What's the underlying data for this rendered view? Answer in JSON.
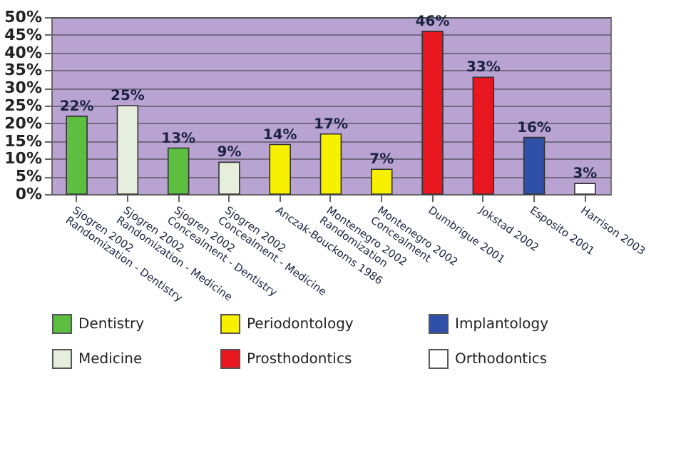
{
  "chart_data": {
    "type": "bar",
    "categories": [
      "Sjogren 2002\nRandomization - Dentistry",
      "Sjogren 2002\nRandomization - Medicine",
      "Sjogren 2002\nConcealment - Dentistry",
      "Sjogren 2002\nConcealment - Medicine",
      "Anczak-Bouckoms 1986",
      "Montenegro 2002\nRandomization",
      "Montenegro 2002\nConcealment",
      "Dumbrigue 2001",
      "Jokstad 2002",
      "Esposito 2001",
      "Harrison 2003"
    ],
    "series": [
      {
        "name": "Dentistry",
        "color": "#5cbf3f",
        "values": [
          22,
          null,
          13,
          null,
          null,
          null,
          null,
          null,
          null,
          null,
          null
        ],
        "value_labels": [
          "22%",
          null,
          "13%",
          null,
          null,
          null,
          null,
          null,
          null,
          null,
          null
        ]
      },
      {
        "name": "Periodontology",
        "color": "#f7f000",
        "values": [
          null,
          null,
          null,
          null,
          14,
          17,
          7,
          null,
          null,
          null,
          null
        ],
        "value_labels": [
          null,
          null,
          null,
          null,
          "14%",
          "17%",
          "7%",
          null,
          null,
          null,
          null
        ]
      },
      {
        "name": "Implantology",
        "color": "#2f4fa8",
        "values": [
          null,
          null,
          null,
          null,
          null,
          null,
          null,
          null,
          null,
          16,
          null
        ],
        "value_labels": [
          null,
          null,
          null,
          null,
          null,
          null,
          null,
          null,
          null,
          "16%",
          null
        ]
      },
      {
        "name": "Medicine",
        "color": "#e6eedd",
        "values": [
          null,
          25,
          null,
          9,
          null,
          null,
          null,
          null,
          null,
          null,
          null
        ],
        "value_labels": [
          null,
          "25%",
          null,
          "9%",
          null,
          null,
          null,
          null,
          null,
          null,
          null
        ]
      },
      {
        "name": "Prosthodontics",
        "color": "#e8161e",
        "values": [
          null,
          null,
          null,
          null,
          null,
          null,
          null,
          46,
          33,
          null,
          null
        ],
        "value_labels": [
          null,
          null,
          null,
          null,
          null,
          null,
          null,
          "46%",
          "33%",
          null,
          null
        ]
      },
      {
        "name": "Orthodontics",
        "color": "#ffffff",
        "values": [
          null,
          null,
          null,
          null,
          null,
          null,
          null,
          null,
          null,
          null,
          3
        ],
        "value_labels": [
          null,
          null,
          null,
          null,
          null,
          null,
          null,
          null,
          null,
          null,
          "3%"
        ]
      }
    ],
    "ylim": [
      0,
      50
    ],
    "yticks": [
      {
        "value": 0,
        "label": "0%"
      },
      {
        "value": 5,
        "label": "5%"
      },
      {
        "value": 10,
        "label": "10%"
      },
      {
        "value": 15,
        "label": "15%"
      },
      {
        "value": 20,
        "label": "20%"
      },
      {
        "value": 25,
        "label": "25%"
      },
      {
        "value": 30,
        "label": "30%"
      },
      {
        "value": 35,
        "label": "35%"
      },
      {
        "value": 40,
        "label": "40%"
      },
      {
        "value": 45,
        "label": "45%"
      },
      {
        "value": 50,
        "label": "50%"
      }
    ],
    "grid": "y",
    "legend": "bottom"
  }
}
